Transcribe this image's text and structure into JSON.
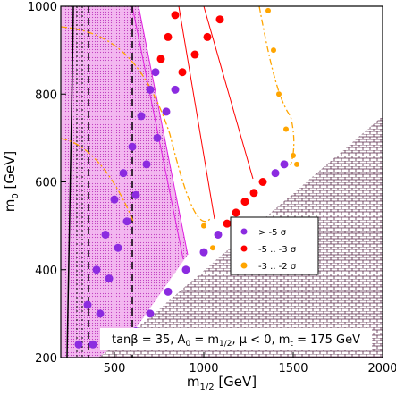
{
  "chart_data": {
    "type": "scatter",
    "x_label": [
      "m",
      "1/2",
      " [GeV]"
    ],
    "y_label": [
      "m",
      "0",
      " [GeV]"
    ],
    "annotation": [
      "tanβ = 35, A",
      "0",
      " = m",
      "1/2",
      ", μ < 0, m",
      "t",
      " = 175 GeV"
    ],
    "xlim": [
      200,
      2000
    ],
    "ylim": [
      200,
      1000
    ],
    "xticks": [
      500,
      1000,
      1500,
      2000
    ],
    "yticks": [
      200,
      400,
      600,
      800,
      1000
    ],
    "legend": "lower right",
    "series": [
      {
        "name": "> -5 σ",
        "color": "#8b2be0",
        "x": [
          300,
          350,
          400,
          450,
          500,
          550,
          600,
          650,
          700,
          730,
          380,
          420,
          470,
          520,
          570,
          620,
          680,
          740,
          790,
          840,
          620,
          700,
          800,
          900,
          1000,
          1080,
          1400,
          1450
        ],
        "y": [
          230,
          320,
          400,
          480,
          560,
          620,
          680,
          750,
          810,
          850,
          230,
          300,
          380,
          450,
          510,
          570,
          640,
          700,
          760,
          810,
          260,
          300,
          350,
          400,
          440,
          480,
          620,
          640
        ]
      },
      {
        "name": "-5 .. -3 σ",
        "color": "#ff0000",
        "x": [
          760,
          800,
          840,
          880,
          950,
          1020,
          1090,
          1130,
          1180,
          1230,
          1280,
          1330
        ],
        "y": [
          880,
          930,
          980,
          850,
          890,
          930,
          970,
          505,
          530,
          555,
          575,
          600
        ]
      },
      {
        "name": "-3 .. -2 σ",
        "color": "#ffa500",
        "x": [
          1360,
          1390,
          1420,
          1460,
          1500,
          1520,
          1000,
          1050
        ],
        "y": [
          990,
          900,
          800,
          720,
          660,
          640,
          500,
          450
        ]
      }
    ]
  }
}
